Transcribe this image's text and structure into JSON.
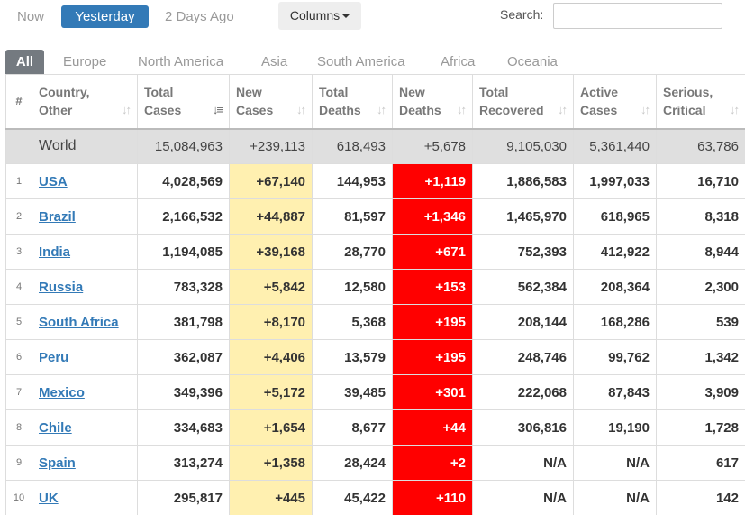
{
  "day_tabs": {
    "now": "Now",
    "yesterday": "Yesterday",
    "two_days": "2 Days Ago"
  },
  "columns_label": "Columns",
  "search": {
    "label": "Search:",
    "value": "",
    "placeholder": ""
  },
  "region_tabs": [
    "All",
    "Europe",
    "North America",
    "Asia",
    "South America",
    "Africa",
    "Oceania"
  ],
  "active_region": "All",
  "colors": {
    "accent": "#337ab7",
    "new_cases_bg": "#fff0b0",
    "new_deaths_bg": "#ff0000",
    "active_tab": "#747a80"
  },
  "headers": {
    "rank": "#",
    "country": [
      "Country,",
      "Other"
    ],
    "total_cases": [
      "Total",
      "Cases"
    ],
    "new_cases": [
      "New",
      "Cases"
    ],
    "total_deaths": [
      "Total",
      "Deaths"
    ],
    "new_deaths": [
      "New",
      "Deaths"
    ],
    "total_recovered": [
      "Total",
      "Recovered"
    ],
    "active_cases": [
      "Active",
      "Cases"
    ],
    "serious_critical": [
      "Serious,",
      "Critical"
    ]
  },
  "world": {
    "country": "World",
    "total_cases": "15,084,963",
    "new_cases": "+239,113",
    "total_deaths": "618,493",
    "new_deaths": "+5,678",
    "total_recovered": "9,105,030",
    "active_cases": "5,361,440",
    "serious_critical": "63,786"
  },
  "rows": [
    {
      "rank": "1",
      "country": "USA",
      "total_cases": "4,028,569",
      "new_cases": "+67,140",
      "total_deaths": "144,953",
      "new_deaths": "+1,119",
      "total_recovered": "1,886,583",
      "active_cases": "1,997,033",
      "serious_critical": "16,710"
    },
    {
      "rank": "2",
      "country": "Brazil",
      "total_cases": "2,166,532",
      "new_cases": "+44,887",
      "total_deaths": "81,597",
      "new_deaths": "+1,346",
      "total_recovered": "1,465,970",
      "active_cases": "618,965",
      "serious_critical": "8,318"
    },
    {
      "rank": "3",
      "country": "India",
      "total_cases": "1,194,085",
      "new_cases": "+39,168",
      "total_deaths": "28,770",
      "new_deaths": "+671",
      "total_recovered": "752,393",
      "active_cases": "412,922",
      "serious_critical": "8,944"
    },
    {
      "rank": "4",
      "country": "Russia",
      "total_cases": "783,328",
      "new_cases": "+5,842",
      "total_deaths": "12,580",
      "new_deaths": "+153",
      "total_recovered": "562,384",
      "active_cases": "208,364",
      "serious_critical": "2,300"
    },
    {
      "rank": "5",
      "country": "South Africa",
      "total_cases": "381,798",
      "new_cases": "+8,170",
      "total_deaths": "5,368",
      "new_deaths": "+195",
      "total_recovered": "208,144",
      "active_cases": "168,286",
      "serious_critical": "539"
    },
    {
      "rank": "6",
      "country": "Peru",
      "total_cases": "362,087",
      "new_cases": "+4,406",
      "total_deaths": "13,579",
      "new_deaths": "+195",
      "total_recovered": "248,746",
      "active_cases": "99,762",
      "serious_critical": "1,342"
    },
    {
      "rank": "7",
      "country": "Mexico",
      "total_cases": "349,396",
      "new_cases": "+5,172",
      "total_deaths": "39,485",
      "new_deaths": "+301",
      "total_recovered": "222,068",
      "active_cases": "87,843",
      "serious_critical": "3,909"
    },
    {
      "rank": "8",
      "country": "Chile",
      "total_cases": "334,683",
      "new_cases": "+1,654",
      "total_deaths": "8,677",
      "new_deaths": "+44",
      "total_recovered": "306,816",
      "active_cases": "19,190",
      "serious_critical": "1,728"
    },
    {
      "rank": "9",
      "country": "Spain",
      "total_cases": "313,274",
      "new_cases": "+1,358",
      "total_deaths": "28,424",
      "new_deaths": "+2",
      "total_recovered": "N/A",
      "active_cases": "N/A",
      "serious_critical": "617"
    },
    {
      "rank": "10",
      "country": "UK",
      "total_cases": "295,817",
      "new_cases": "+445",
      "total_deaths": "45,422",
      "new_deaths": "+110",
      "total_recovered": "N/A",
      "active_cases": "N/A",
      "serious_critical": "142"
    }
  ]
}
